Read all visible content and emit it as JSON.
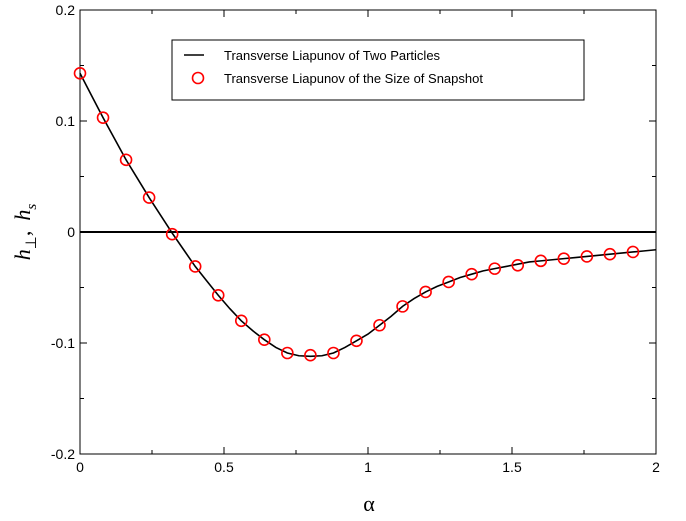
{
  "chart_data": {
    "type": "line",
    "title": "",
    "xlabel": "α",
    "ylabel": {
      "h1": "h",
      "sub1": "⊥",
      "sep": ",",
      "h2": "h",
      "sub2": "s"
    },
    "xlim": [
      0,
      2
    ],
    "ylim": [
      -0.2,
      0.2
    ],
    "xticks": [
      0,
      0.5,
      1,
      1.5,
      2
    ],
    "xtick_labels": [
      "0",
      "0.5",
      "1",
      "1.5",
      "2"
    ],
    "yticks": [
      -0.2,
      -0.1,
      0,
      0.1,
      0.2
    ],
    "ytick_labels": [
      "-0.2",
      "-0.1",
      "0",
      "0.1",
      "0.2"
    ],
    "grid": false,
    "legend_position": "top-center",
    "reference_line_y": 0,
    "series": [
      {
        "name": "Transverse Liapunov of Two Particles",
        "style": "line",
        "color": "#000000",
        "x": [
          0,
          0.04,
          0.08,
          0.12,
          0.16,
          0.2,
          0.24,
          0.28,
          0.32,
          0.36,
          0.4,
          0.44,
          0.48,
          0.52,
          0.56,
          0.6,
          0.64,
          0.68,
          0.72,
          0.76,
          0.8,
          0.84,
          0.88,
          0.92,
          0.96,
          1.0,
          1.04,
          1.08,
          1.12,
          1.16,
          1.2,
          1.24,
          1.28,
          1.32,
          1.36,
          1.4,
          1.44,
          1.48,
          1.52,
          1.56,
          1.6,
          1.64,
          1.68,
          1.72,
          1.76,
          1.8,
          1.84,
          1.88,
          1.92,
          1.96,
          2.0
        ],
        "y": [
          0.143,
          0.123,
          0.103,
          0.084,
          0.065,
          0.048,
          0.031,
          0.015,
          -0.001,
          -0.016,
          -0.031,
          -0.044,
          -0.057,
          -0.069,
          -0.08,
          -0.089,
          -0.097,
          -0.104,
          -0.109,
          -0.1115,
          -0.112,
          -0.1115,
          -0.109,
          -0.104,
          -0.098,
          -0.092,
          -0.084,
          -0.076,
          -0.067,
          -0.06,
          -0.054,
          -0.049,
          -0.045,
          -0.041,
          -0.038,
          -0.035,
          -0.033,
          -0.031,
          -0.029,
          -0.027,
          -0.026,
          -0.025,
          -0.024,
          -0.023,
          -0.022,
          -0.021,
          -0.02,
          -0.019,
          -0.018,
          -0.017,
          -0.016
        ]
      },
      {
        "name": "Transverse Liapunov of the Size of Snapshot",
        "style": "scatter",
        "marker": "open-circle",
        "color": "#ff0000",
        "x": [
          0,
          0.08,
          0.16,
          0.24,
          0.32,
          0.4,
          0.48,
          0.56,
          0.64,
          0.72,
          0.8,
          0.88,
          0.96,
          1.04,
          1.12,
          1.2,
          1.28,
          1.36,
          1.44,
          1.52,
          1.6,
          1.68,
          1.76,
          1.84,
          1.92
        ],
        "y": [
          0.143,
          0.103,
          0.065,
          0.031,
          -0.002,
          -0.031,
          -0.057,
          -0.08,
          -0.097,
          -0.109,
          -0.111,
          -0.109,
          -0.098,
          -0.084,
          -0.067,
          -0.054,
          -0.045,
          -0.038,
          -0.033,
          -0.03,
          -0.026,
          -0.024,
          -0.022,
          -0.02,
          -0.018
        ]
      }
    ]
  }
}
